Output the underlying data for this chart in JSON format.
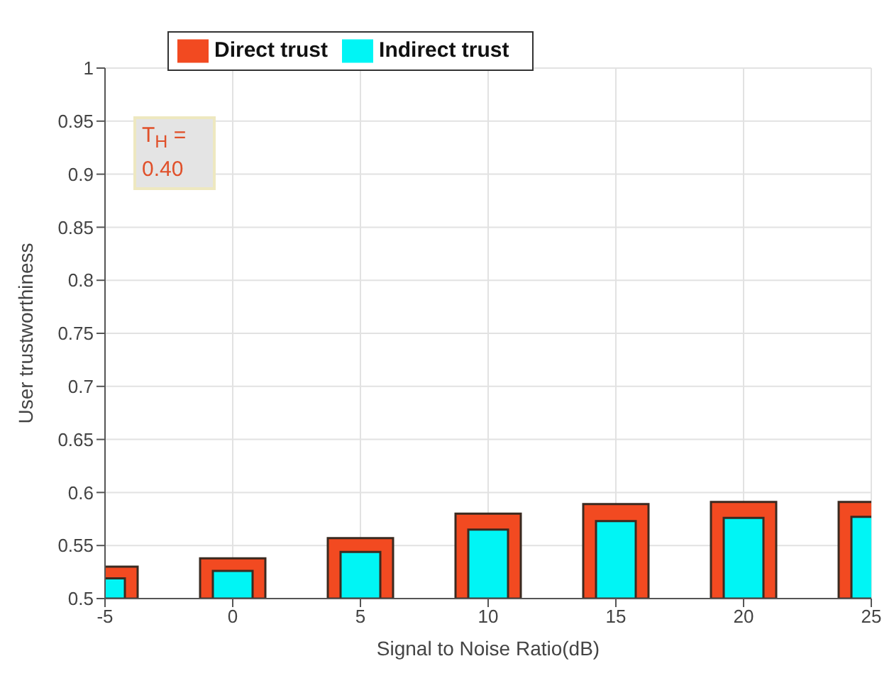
{
  "chart_data": {
    "type": "bar",
    "xlabel": "Signal to Noise Ratio(dB)",
    "ylabel": "User trustworthiness",
    "x": [
      -5,
      0,
      5,
      10,
      15,
      20,
      25
    ],
    "series": [
      {
        "name": "Direct trust",
        "color": "#f24a21",
        "values": [
          0.53,
          0.538,
          0.557,
          0.58,
          0.589,
          0.591,
          0.591
        ]
      },
      {
        "name": "Indirect trust",
        "color": "#00f5f5",
        "values": [
          0.519,
          0.526,
          0.544,
          0.565,
          0.573,
          0.576,
          0.577
        ]
      }
    ],
    "xlim": [
      -5,
      25
    ],
    "xticks": [
      -5,
      0,
      5,
      10,
      15,
      20,
      25
    ],
    "ylim": [
      0.5,
      1
    ],
    "yticks": [
      0.5,
      0.55,
      0.6,
      0.65,
      0.7,
      0.75,
      0.8,
      0.85,
      0.9,
      0.95,
      1
    ],
    "grid": true,
    "legend": "top",
    "annotations": [
      "T$_{H}$ = 0.40"
    ]
  }
}
